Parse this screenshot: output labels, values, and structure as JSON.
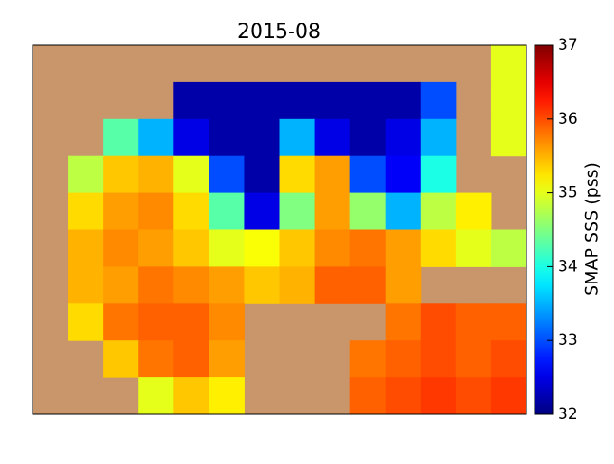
{
  "chart_data": {
    "type": "heatmap",
    "title": "2015-08",
    "colorbar_label": "SMAP SSS (pss)",
    "colormap": "jet",
    "land_color": "#c8966a",
    "clim": [
      32,
      37
    ],
    "cticks": [
      32,
      33,
      34,
      35,
      36,
      37
    ],
    "values": [
      [
        null,
        null,
        null,
        null,
        null,
        null,
        null,
        null,
        null,
        null,
        null,
        null,
        null,
        35.0
      ],
      [
        null,
        null,
        null,
        null,
        32.2,
        32.2,
        32.2,
        32.2,
        32.2,
        32.2,
        32.2,
        33.0,
        null,
        35.0
      ],
      [
        null,
        null,
        34.3,
        33.5,
        32.5,
        32.2,
        32.2,
        33.5,
        32.5,
        32.2,
        32.5,
        33.5,
        null,
        35.0
      ],
      [
        null,
        34.8,
        35.4,
        35.5,
        35.0,
        33.0,
        32.2,
        35.3,
        35.6,
        33.0,
        32.6,
        34.0,
        null,
        null
      ],
      [
        null,
        35.3,
        35.6,
        35.7,
        35.3,
        34.3,
        32.5,
        34.5,
        35.6,
        34.6,
        33.5,
        34.8,
        35.2,
        null
      ],
      [
        null,
        35.5,
        35.7,
        35.6,
        35.4,
        35.0,
        35.1,
        35.4,
        35.7,
        35.8,
        35.6,
        35.3,
        35.0,
        34.8
      ],
      [
        null,
        35.5,
        35.6,
        35.8,
        35.7,
        35.6,
        35.4,
        35.5,
        35.9,
        35.9,
        35.6,
        null,
        null,
        null
      ],
      [
        null,
        35.3,
        35.8,
        35.9,
        35.9,
        35.7,
        null,
        null,
        null,
        null,
        35.8,
        36.0,
        35.9,
        35.9
      ],
      [
        null,
        null,
        35.4,
        35.8,
        35.9,
        35.6,
        null,
        null,
        null,
        35.8,
        35.9,
        36.0,
        35.9,
        36.0
      ],
      [
        null,
        null,
        null,
        35.0,
        35.4,
        35.2,
        null,
        null,
        null,
        35.9,
        36.0,
        36.1,
        36.0,
        36.1
      ]
    ]
  }
}
